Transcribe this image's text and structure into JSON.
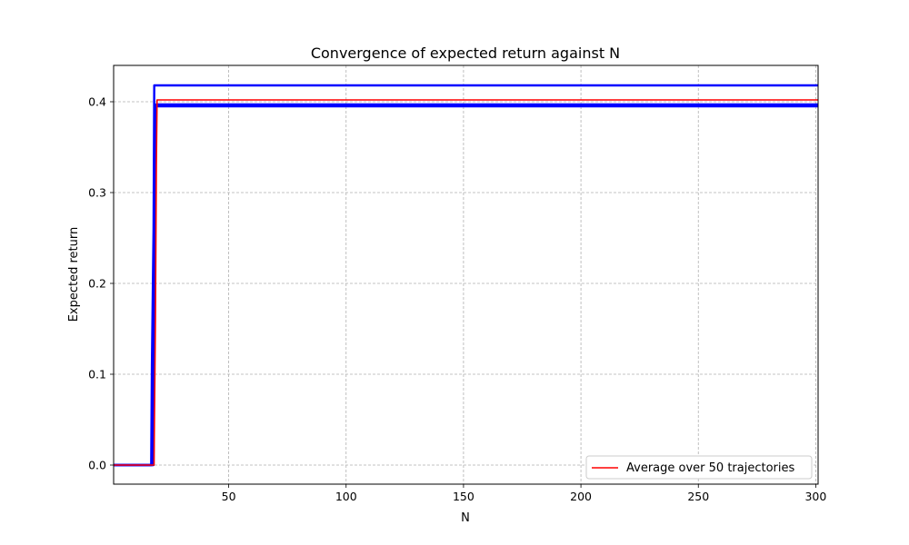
{
  "chart_data": {
    "type": "line",
    "title": "Convergence of expected return against N",
    "xlabel": "N",
    "ylabel": "Expected return",
    "xlim": [
      1,
      301
    ],
    "ylim": [
      -0.021,
      0.44
    ],
    "xticks": [
      50,
      100,
      150,
      200,
      250,
      300
    ],
    "yticks": [
      0.0,
      0.1,
      0.2,
      0.3,
      0.4
    ],
    "xtick_labels": [
      "50",
      "100",
      "150",
      "200",
      "250",
      "300"
    ],
    "ytick_labels": [
      "0.0",
      "0.1",
      "0.2",
      "0.3",
      "0.4"
    ],
    "grid": true,
    "legend_position": "lower-right",
    "legend_label": "Average over 50 trajectories",
    "colors": {
      "trajectory": "#0000ff",
      "average": "#ff0000",
      "grid": "#b0b0b0"
    },
    "series": [
      {
        "color": "#0000ff",
        "x": [
          1,
          17,
          17.3,
          18,
          18.3,
          301
        ],
        "y": [
          0.0,
          0.0,
          0.11,
          0.26,
          0.418,
          0.418
        ]
      },
      {
        "color": "#0000ff",
        "x": [
          1,
          17.5,
          18,
          18.6,
          19,
          301
        ],
        "y": [
          0.0,
          0.0,
          0.17,
          0.33,
          0.397,
          0.397
        ]
      },
      {
        "color": "#0000ff",
        "x": [
          1,
          18,
          18.5,
          19,
          301
        ],
        "y": [
          0.0,
          0.0,
          0.25,
          0.395,
          0.395
        ]
      },
      {
        "name": "Average over 50 trajectories",
        "color": "#ff0000",
        "x": [
          1,
          18.2,
          18.8,
          19.2,
          19.5,
          301
        ],
        "y": [
          0.0,
          0.0,
          0.16,
          0.33,
          0.402,
          0.402
        ]
      }
    ]
  }
}
